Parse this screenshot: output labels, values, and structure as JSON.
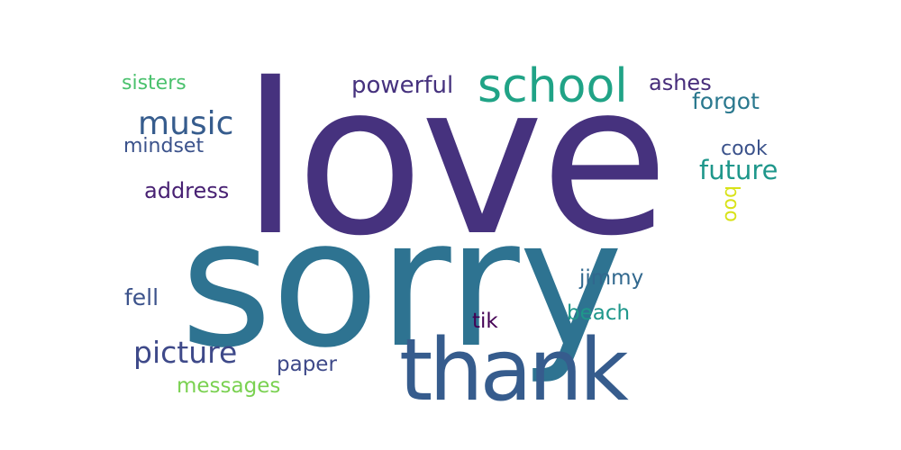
{
  "words": {
    "love": {
      "text": "love",
      "color": "#46327e"
    },
    "sorry": {
      "text": "sorry",
      "color": "#2e7391"
    },
    "thank": {
      "text": "thank",
      "color": "#365c8d"
    },
    "school": {
      "text": "school",
      "color": "#20a386"
    },
    "music": {
      "text": "music",
      "color": "#365c8d"
    },
    "powerful": {
      "text": "powerful",
      "color": "#46327e"
    },
    "sisters": {
      "text": "sisters",
      "color": "#4ac16d"
    },
    "ashes": {
      "text": "ashes",
      "color": "#472d7b"
    },
    "forgot": {
      "text": "forgot",
      "color": "#2a788e"
    },
    "mindset": {
      "text": "mindset",
      "color": "#3b528b"
    },
    "cook": {
      "text": "cook",
      "color": "#3b528b"
    },
    "future": {
      "text": "future",
      "color": "#1f978b"
    },
    "address": {
      "text": "address",
      "color": "#482173"
    },
    "boo": {
      "text": "boo",
      "color": "#d8e219"
    },
    "jimmy": {
      "text": "jimmy",
      "color": "#31688e"
    },
    "fell": {
      "text": "fell",
      "color": "#3b528b"
    },
    "beach": {
      "text": "beach",
      "color": "#1f978b"
    },
    "tik": {
      "text": "tik",
      "color": "#440154"
    },
    "picture": {
      "text": "picture",
      "color": "#3e4989"
    },
    "paper": {
      "text": "paper",
      "color": "#3e4989"
    },
    "messages": {
      "text": "messages",
      "color": "#7ad151"
    }
  }
}
